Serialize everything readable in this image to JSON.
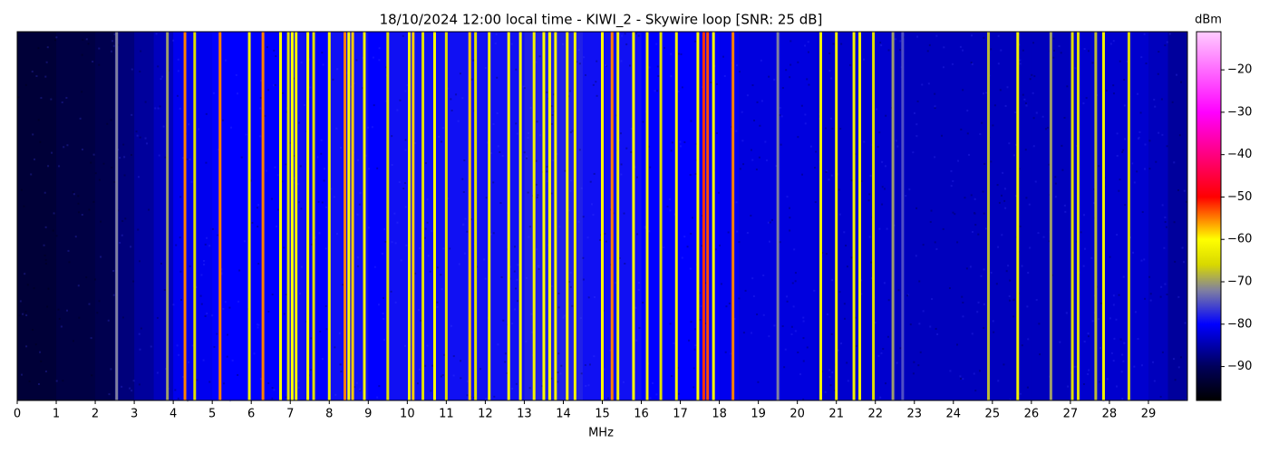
{
  "chart_data": {
    "type": "waterfall",
    "title": "18/10/2024 12:00 local time - KIWI_2 - Skywire loop [SNR: 25 dB]",
    "x_label": "MHz",
    "colorbar_label": "dBm",
    "xlim": [
      0,
      30
    ],
    "xticks": [
      0,
      1,
      2,
      3,
      4,
      5,
      6,
      7,
      8,
      9,
      10,
      11,
      12,
      13,
      14,
      15,
      16,
      17,
      18,
      19,
      20,
      21,
      22,
      23,
      24,
      25,
      26,
      27,
      28,
      29
    ],
    "clim": [
      -98,
      -11
    ],
    "cticks": [
      {
        "value": -90,
        "label": "−90"
      },
      {
        "value": -80,
        "label": "−80"
      },
      {
        "value": -70,
        "label": "−70"
      },
      {
        "value": -60,
        "label": "−60"
      },
      {
        "value": -50,
        "label": "−50"
      },
      {
        "value": -40,
        "label": "−40"
      },
      {
        "value": -30,
        "label": "−30"
      },
      {
        "value": -20,
        "label": "−20"
      }
    ],
    "colormap": [
      {
        "value": -98,
        "color": "#000000"
      },
      {
        "value": -90,
        "color": "#00005a"
      },
      {
        "value": -80,
        "color": "#0000ff"
      },
      {
        "value": -72,
        "color": "#8080a0"
      },
      {
        "value": -66,
        "color": "#d8d800"
      },
      {
        "value": -60,
        "color": "#ffff00"
      },
      {
        "value": -50,
        "color": "#ff0000"
      },
      {
        "value": -30,
        "color": "#ff00ff"
      },
      {
        "value": -11,
        "color": "#ffccff"
      }
    ],
    "background": {
      "x": [
        0,
        0.5,
        1,
        1.5,
        2,
        2.5,
        3,
        3.5,
        4,
        4.5,
        5,
        5.5,
        6,
        6.5,
        7,
        7.5,
        8,
        8.5,
        9,
        9.5,
        10,
        10.5,
        11,
        11.5,
        12,
        12.5,
        13,
        13.5,
        14,
        14.5,
        15,
        15.5,
        16,
        16.5,
        17,
        17.5,
        18,
        18.5,
        19,
        19.5,
        20,
        20.5,
        21,
        21.5,
        22,
        22.5,
        23,
        23.5,
        24,
        24.5,
        25,
        25.5,
        26,
        26.5,
        27,
        27.5,
        28,
        28.5,
        29,
        29.5
      ],
      "values": [
        -93,
        -93,
        -92,
        -92,
        -91,
        -88,
        -86,
        -84,
        -81,
        -81,
        -80,
        -80,
        -80,
        -80,
        -79,
        -80,
        -79,
        -79,
        -80,
        -79,
        -79,
        -79,
        -79,
        -79,
        -79,
        -79,
        -78,
        -78,
        -78,
        -79,
        -79,
        -79,
        -80,
        -80,
        -80,
        -80,
        -81,
        -82,
        -82,
        -82,
        -82,
        -83,
        -83,
        -83,
        -83,
        -84,
        -84,
        -84,
        -84,
        -84,
        -84,
        -84,
        -84,
        -84,
        -83,
        -83,
        -83,
        -83,
        -84,
        -86
      ]
    },
    "signals": {
      "x": [
        2.55,
        3.85,
        4.3,
        4.55,
        5.2,
        5.95,
        6.3,
        6.75,
        6.95,
        7.05,
        7.15,
        7.45,
        7.6,
        8.0,
        8.4,
        8.5,
        8.6,
        8.9,
        9.5,
        10.05,
        10.15,
        10.4,
        10.7,
        11.0,
        11.6,
        11.75,
        12.1,
        12.6,
        12.9,
        13.25,
        13.5,
        13.65,
        13.8,
        14.1,
        14.3,
        15.0,
        15.25,
        15.4,
        15.8,
        16.15,
        16.5,
        16.9,
        17.45,
        17.6,
        17.7,
        17.85,
        18.35,
        19.5,
        20.6,
        21.0,
        21.45,
        21.6,
        21.95,
        22.45,
        22.7,
        24.9,
        25.65,
        26.5,
        27.05,
        27.2,
        27.65,
        27.85,
        28.5
      ],
      "values": [
        -72,
        -70,
        -55,
        -65,
        -55,
        -62,
        -55,
        -60,
        -65,
        -60,
        -62,
        -60,
        -65,
        -62,
        -55,
        -60,
        -58,
        -62,
        -65,
        -62,
        -58,
        -65,
        -60,
        -65,
        -58,
        -65,
        -62,
        -60,
        -60,
        -62,
        -60,
        -60,
        -62,
        -60,
        -62,
        -60,
        -55,
        -62,
        -60,
        -62,
        -65,
        -62,
        -60,
        -52,
        -53,
        -60,
        -55,
        -72,
        -62,
        -62,
        -62,
        -62,
        -65,
        -70,
        -75,
        -68,
        -62,
        -70,
        -65,
        -65,
        -68,
        -62,
        -66
      ]
    }
  }
}
